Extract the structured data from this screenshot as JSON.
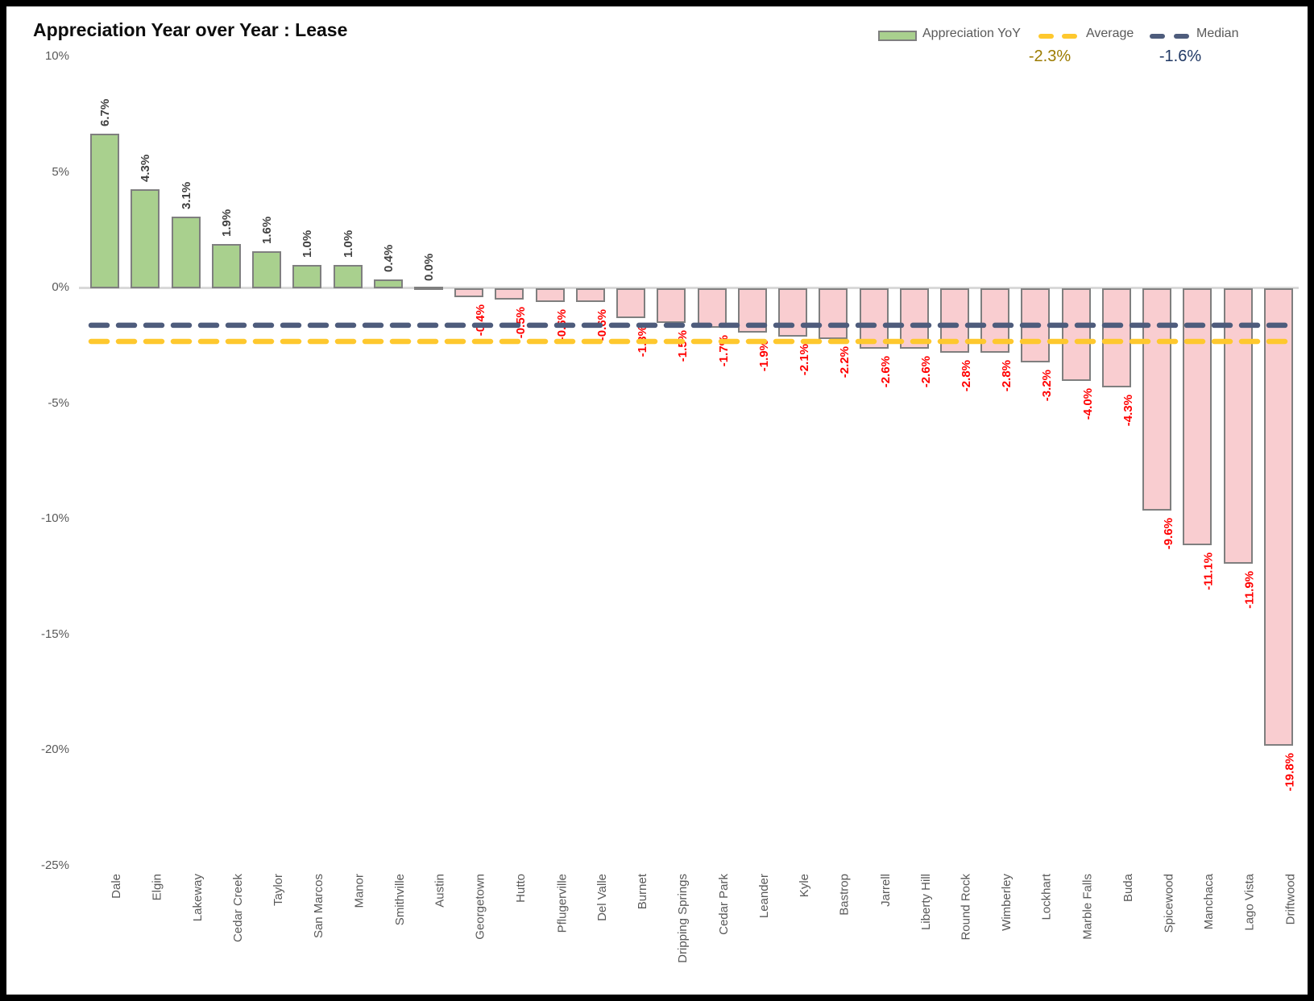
{
  "title": "Appreciation Year over Year : Lease",
  "legend": {
    "series_label": "Appreciation YoY",
    "average_label": "Average",
    "average_value": "-2.3%",
    "median_label": "Median",
    "median_value": "-1.6%"
  },
  "colors": {
    "positive_bar_fill": "#a9d08e",
    "negative_bar_fill": "#f9cdd0",
    "bar_border": "#7f7f7f",
    "average_line": "#fec82e",
    "median_line": "#4e5c7c",
    "average_value_text": "#9c7b00",
    "median_value_text": "#203864",
    "positive_value_label": "#404040",
    "negative_value_label": "#ff0000",
    "axis_text": "#595959",
    "zero_line": "#d9d9d9"
  },
  "chart_data": {
    "type": "bar",
    "title": "Appreciation Year over Year : Lease",
    "xlabel": "",
    "ylabel": "",
    "ylim": [
      -25,
      10
    ],
    "grid": false,
    "legend_position": "top-right",
    "ytick_values": [
      10,
      5,
      0,
      -5,
      -10,
      -15,
      -20,
      -25
    ],
    "ytick_labels": [
      "10%",
      "5%",
      "0%",
      "-5%",
      "-10%",
      "-15%",
      "-20%",
      "-25%"
    ],
    "categories": [
      "Dale",
      "Elgin",
      "Lakeway",
      "Cedar Creek",
      "Taylor",
      "San Marcos",
      "Manor",
      "Smithville",
      "Austin",
      "Georgetown",
      "Hutto",
      "Pflugerville",
      "Del Valle",
      "Burnet",
      "Dripping Springs",
      "Cedar Park",
      "Leander",
      "Kyle",
      "Bastrop",
      "Jarrell",
      "Liberty Hill",
      "Round Rock",
      "Wimberley",
      "Lockhart",
      "Marble Falls",
      "Buda",
      "Spicewood",
      "Manchaca",
      "Lago Vista",
      "Driftwood"
    ],
    "values": [
      6.7,
      4.3,
      3.1,
      1.9,
      1.6,
      1.0,
      1.0,
      0.4,
      0.0,
      -0.4,
      -0.5,
      -0.6,
      -0.6,
      -1.3,
      -1.5,
      -1.7,
      -1.9,
      -2.1,
      -2.2,
      -2.6,
      -2.6,
      -2.8,
      -2.8,
      -3.2,
      -4.0,
      -4.3,
      -9.6,
      -11.1,
      -11.9,
      -19.8
    ],
    "data_labels": [
      "6.7%",
      "4.3%",
      "3.1%",
      "1.9%",
      "1.6%",
      "1.0%",
      "1.0%",
      "0.4%",
      "0.0%",
      "-0.4%",
      "-0.5%",
      "-0.6%",
      "-0.6%",
      "-1.3%",
      "-1.5%",
      "-1.7%",
      "-1.9%",
      "-2.1%",
      "-2.2%",
      "-2.6%",
      "-2.6%",
      "-2.8%",
      "-2.8%",
      "-3.2%",
      "-4.0%",
      "-4.3%",
      "-9.6%",
      "-11.1%",
      "-11.9%",
      "-19.8%"
    ],
    "average": -2.3,
    "median": -1.6,
    "series_name": "Appreciation YoY"
  }
}
